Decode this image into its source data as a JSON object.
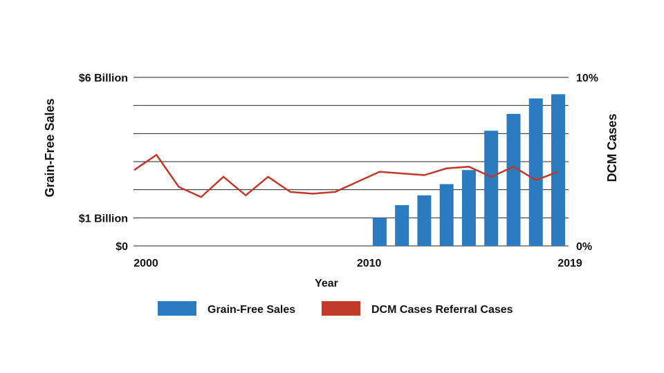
{
  "chart_data": {
    "type": "bar",
    "x": [
      2011,
      2012,
      2013,
      2014,
      2015,
      2016,
      2017,
      2018,
      2019
    ],
    "series": [
      {
        "name": "Grain-Free Sales",
        "type": "bar",
        "axis": "left",
        "color": "#2b7bc0",
        "x": [
          2011,
          2012,
          2013,
          2014,
          2015,
          2016,
          2017,
          2018,
          2019
        ],
        "values": [
          1.0,
          1.45,
          1.8,
          2.2,
          2.7,
          4.1,
          4.7,
          5.25,
          5.4
        ]
      },
      {
        "name": "DCM Cases Referral Cases",
        "type": "line",
        "axis": "right",
        "color": "#c0392b",
        "x": [
          2000,
          2001,
          2002,
          2003,
          2004,
          2005,
          2006,
          2007,
          2008,
          2009,
          2010,
          2011,
          2012,
          2013,
          2014,
          2015,
          2016,
          2017,
          2018,
          2019
        ],
        "values": [
          4.5,
          5.4,
          3.5,
          2.9,
          4.1,
          3.0,
          4.1,
          3.2,
          3.1,
          3.2,
          3.8,
          4.4,
          4.3,
          4.2,
          4.6,
          4.7,
          4.1,
          4.7,
          3.9,
          4.4
        ]
      }
    ],
    "ylabel_left": "Grain-Free Sales",
    "ylabel_right": "DCM Cases",
    "xlabel": "Year",
    "xticks": [
      "2000",
      "2010",
      "2019"
    ],
    "xtick_values": [
      2000,
      2010,
      2019
    ],
    "xlim": [
      2000,
      2019.5
    ],
    "ylim_left": [
      0,
      6
    ],
    "ylim_right": [
      0,
      10
    ],
    "yticks_left": [
      {
        "value": 6,
        "label": "$6 Billion"
      },
      {
        "value": 1,
        "label": "$1 Billion"
      },
      {
        "value": 0,
        "label": "$0"
      }
    ],
    "yticks_right": [
      {
        "value": 10,
        "label": "10%"
      },
      {
        "value": 0,
        "label": "0%"
      }
    ],
    "grid": true,
    "legend_position": "bottom"
  }
}
